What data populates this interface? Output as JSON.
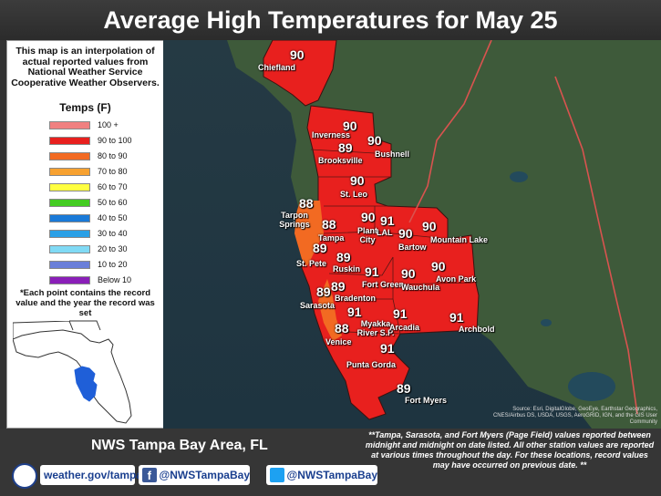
{
  "title": "Average High Temperatures for May 25",
  "legend": {
    "note": "This map is an interpolation of actual reported values from National Weather Service Cooperative Weather Observers.",
    "title": "Temps (F)",
    "items": [
      {
        "label": "100 +",
        "color": "#f08080"
      },
      {
        "label": "90 to 100",
        "color": "#e8201e"
      },
      {
        "label": "80 to 90",
        "color": "#f26a22"
      },
      {
        "label": "70 to 80",
        "color": "#f7a130"
      },
      {
        "label": "60 to 70",
        "color": "#ffff40"
      },
      {
        "label": "50 to 60",
        "color": "#44cc22"
      },
      {
        "label": "40 to 50",
        "color": "#1a7ad8"
      },
      {
        "label": "30 to 40",
        "color": "#2aa0e6"
      },
      {
        "label": "20 to 30",
        "color": "#80daf5"
      },
      {
        "label": "10 to 20",
        "color": "#6a7fd9"
      },
      {
        "label": "Below 10",
        "color": "#8a1fb8"
      }
    ],
    "record_note": "*Each point contains the record value and the year the record was set"
  },
  "stations": [
    {
      "temp": "90",
      "city": "Chiefland"
    },
    {
      "temp": "90",
      "city": "Inverness"
    },
    {
      "temp": "89",
      "city": "Brooksville"
    },
    {
      "temp": "90",
      "city": "Bushnell"
    },
    {
      "temp": "90",
      "city": "St. Leo"
    },
    {
      "temp": "88",
      "city": "Tarpon Springs"
    },
    {
      "temp": "88",
      "city": "Tampa"
    },
    {
      "temp": "90",
      "city": "Plant City"
    },
    {
      "temp": "91",
      "city": "LAL"
    },
    {
      "temp": "90",
      "city": "Bartow"
    },
    {
      "temp": "90",
      "city": "Mountain Lake"
    },
    {
      "temp": "89",
      "city": "St. Pete"
    },
    {
      "temp": "89",
      "city": "Ruskin"
    },
    {
      "temp": "91",
      "city": "Fort Green"
    },
    {
      "temp": "90",
      "city": "Wauchula"
    },
    {
      "temp": "90",
      "city": "Avon Park"
    },
    {
      "temp": "89",
      "city": "Bradenton"
    },
    {
      "temp": "89",
      "city": "Sarasota"
    },
    {
      "temp": "91",
      "city": "Myakka River S.P."
    },
    {
      "temp": "91",
      "city": "Arcadia"
    },
    {
      "temp": "91",
      "city": "Archbold"
    },
    {
      "temp": "88",
      "city": "Venice"
    },
    {
      "temp": "91",
      "city": "Punta Gorda"
    },
    {
      "temp": "89",
      "city": "Fort Myers"
    }
  ],
  "attribution": "Source: Esri, DigitalGlobe, GeoEye, Earthstar Geographics, CNES/Airbus DS, USDA, USGS, AeroGRID, IGN, and the GIS User Community",
  "footer": {
    "area": "NWS Tampa Bay Area, FL",
    "note": "**Tampa, Sarasota, and Fort Myers (Page Field) values reported between midnight and midnight on date listed. All other station values are reported at various times throughout the day. For these locations, record values may have occurred on previous date. **",
    "links": {
      "web": "weather.gov/tampa",
      "facebook": "@NWSTampaBay",
      "twitter": "@NWSTampaBay"
    }
  },
  "colors": {
    "land_hot": "#e8201e",
    "land_warm": "#f26a22",
    "background": "#333333"
  }
}
